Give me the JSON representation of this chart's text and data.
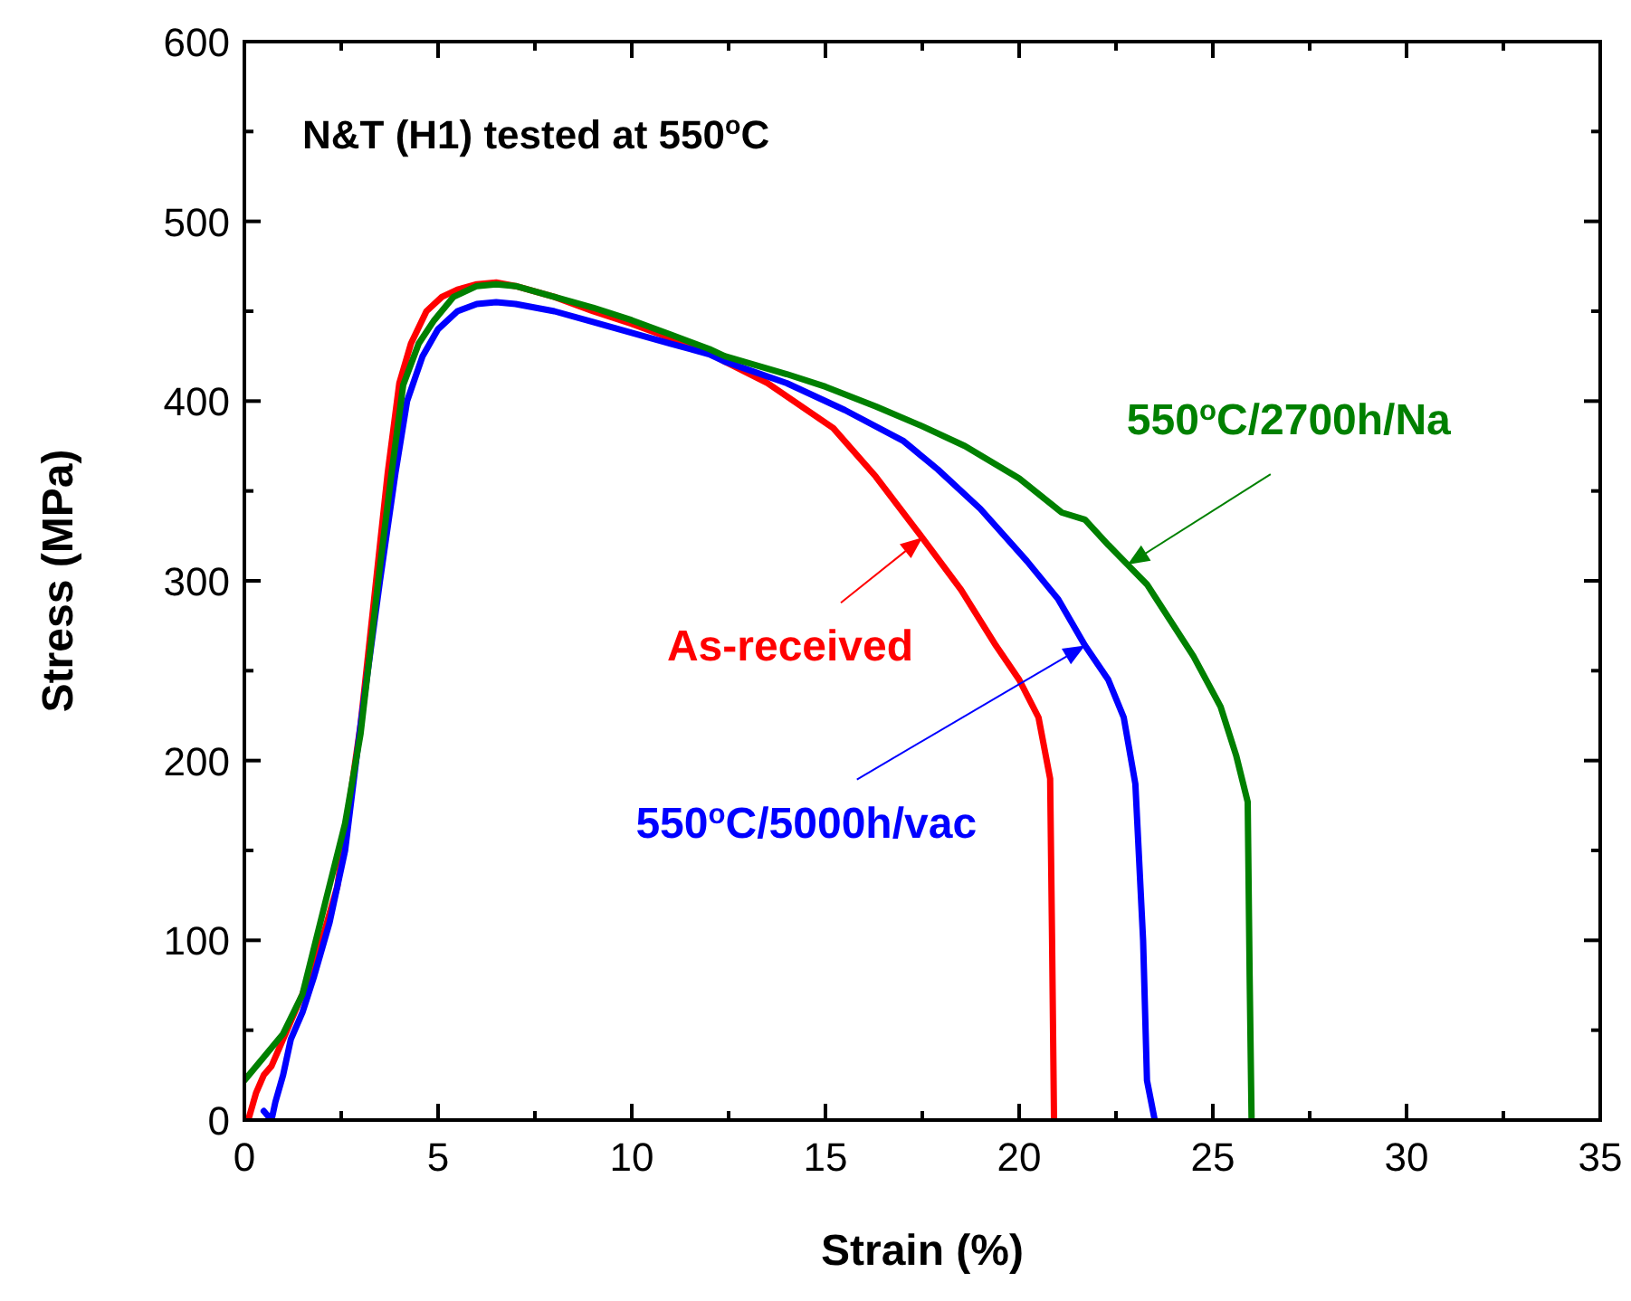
{
  "chart_data": {
    "type": "line",
    "title": "N&T (H1) tested at 550$^{o}$C",
    "xlabel": "Strain (%)",
    "ylabel": "Stress (MPa)",
    "xlim": [
      0,
      35
    ],
    "xticks": [
      0,
      5,
      10,
      15,
      20,
      25,
      30,
      35
    ],
    "ylim": [
      0,
      600
    ],
    "yticks": [
      0,
      100,
      200,
      300,
      400,
      500,
      600
    ],
    "grid": false,
    "marker": "none",
    "line_style": "solid",
    "series": [
      {
        "color": "#ff0000",
        "x": [
          0.1,
          0.3,
          0.5,
          0.7,
          1,
          1.5,
          2,
          2.4,
          3,
          3.4,
          3.7,
          4,
          4.3,
          4.7,
          5.1,
          5.5,
          6,
          6.5,
          7,
          8,
          9,
          10,
          11,
          12,
          12.4,
          13.5,
          15.2,
          16.3,
          17.5,
          18.5,
          19.4,
          20,
          20.5,
          20.8,
          20.85,
          20.9
        ],
        "values": [
          0,
          15,
          25,
          30,
          45,
          70,
          100,
          130,
          220,
          300,
          360,
          410,
          432,
          450,
          458,
          462,
          465,
          466,
          464,
          458,
          450,
          443,
          435,
          427,
          422,
          410,
          385,
          358,
          324,
          295,
          264,
          245,
          224,
          190,
          100,
          0
        ]
      },
      {
        "color": "#0000ff",
        "x": [
          0.5,
          0.7,
          0.8,
          1,
          1.2,
          1.5,
          1.8,
          2.2,
          2.6,
          3,
          3.5,
          3.9,
          4.2,
          4.6,
          5,
          5.5,
          6,
          6.5,
          7,
          8,
          9,
          10,
          11,
          12,
          12.4,
          14,
          15.5,
          17,
          17.9,
          19,
          20.2,
          21,
          21.7,
          22.3,
          22.7,
          23,
          23.2,
          23.3,
          23.5
        ],
        "values": [
          5,
          0,
          10,
          25,
          45,
          60,
          80,
          110,
          150,
          220,
          300,
          360,
          400,
          425,
          440,
          450,
          454,
          455,
          454,
          450,
          444,
          438,
          432,
          426,
          422,
          410,
          395,
          378,
          362,
          340,
          311,
          290,
          264,
          245,
          224,
          187,
          100,
          22,
          0
        ]
      },
      {
        "color": "#008000",
        "x": [
          0,
          0.5,
          1,
          1.5,
          2.1,
          2.6,
          3,
          3.5,
          3.8,
          4.1,
          4.5,
          4.9,
          5.4,
          6,
          6.5,
          7,
          8,
          9,
          10,
          11,
          12,
          12.4,
          14,
          15,
          16.3,
          17.5,
          18.6,
          20,
          21.1,
          21.7,
          22.3,
          22.8,
          23.3,
          24.5,
          25.2,
          25.6,
          25.9,
          25.95,
          26
        ],
        "values": [
          22,
          35,
          48,
          70,
          122,
          165,
          215,
          308,
          360,
          409,
          432,
          445,
          458,
          464,
          465,
          464,
          458,
          452,
          445,
          437,
          429,
          425,
          415,
          408,
          397,
          386,
          375,
          357,
          338,
          334,
          320,
          309,
          298,
          258,
          230,
          203,
          177,
          80,
          0
        ]
      }
    ],
    "annotations": [
      {
        "text": "As-received",
        "x": 17.5,
        "y": 324
      },
      {
        "text": "550$^{o}$C/5000h/vac",
        "x": 21.7,
        "y": 264
      },
      {
        "text": "550$^{o}$C/2700h/Na",
        "x": 22.8,
        "y": 309
      }
    ]
  }
}
